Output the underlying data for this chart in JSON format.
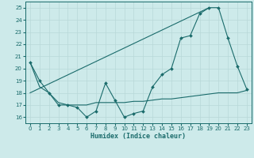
{
  "xlabel": "Humidex (Indice chaleur)",
  "xlim": [
    -0.5,
    23.5
  ],
  "ylim": [
    15.5,
    25.5
  ],
  "yticks": [
    16,
    17,
    18,
    19,
    20,
    21,
    22,
    23,
    24,
    25
  ],
  "xticks": [
    0,
    1,
    2,
    3,
    4,
    5,
    6,
    7,
    8,
    9,
    10,
    11,
    12,
    13,
    14,
    15,
    16,
    17,
    18,
    19,
    20,
    21,
    22,
    23
  ],
  "bg_color": "#cdeaea",
  "line_color": "#1a6b6b",
  "line1_x": [
    0,
    1,
    2,
    3,
    4,
    5,
    6,
    7,
    8,
    9,
    10,
    11,
    12,
    13,
    14,
    15,
    16,
    17,
    18,
    19,
    20,
    21,
    22,
    23
  ],
  "line1_y": [
    20.5,
    19.0,
    18.0,
    17.0,
    17.0,
    16.8,
    16.0,
    16.5,
    18.8,
    17.4,
    16.0,
    16.3,
    16.5,
    18.5,
    19.5,
    20.0,
    22.5,
    22.7,
    24.5,
    25.0,
    25.0,
    22.5,
    20.2,
    18.3
  ],
  "line2_x": [
    0,
    19
  ],
  "line2_y": [
    18.0,
    25.0
  ],
  "line3_x": [
    0,
    1,
    2,
    3,
    4,
    5,
    6,
    7,
    8,
    9,
    10,
    11,
    12,
    13,
    14,
    15,
    16,
    17,
    18,
    19,
    20,
    21,
    22,
    23
  ],
  "line3_y": [
    20.5,
    18.5,
    18.0,
    17.2,
    17.0,
    17.0,
    17.0,
    17.2,
    17.2,
    17.2,
    17.2,
    17.3,
    17.3,
    17.4,
    17.5,
    17.5,
    17.6,
    17.7,
    17.8,
    17.9,
    18.0,
    18.0,
    18.0,
    18.2
  ]
}
